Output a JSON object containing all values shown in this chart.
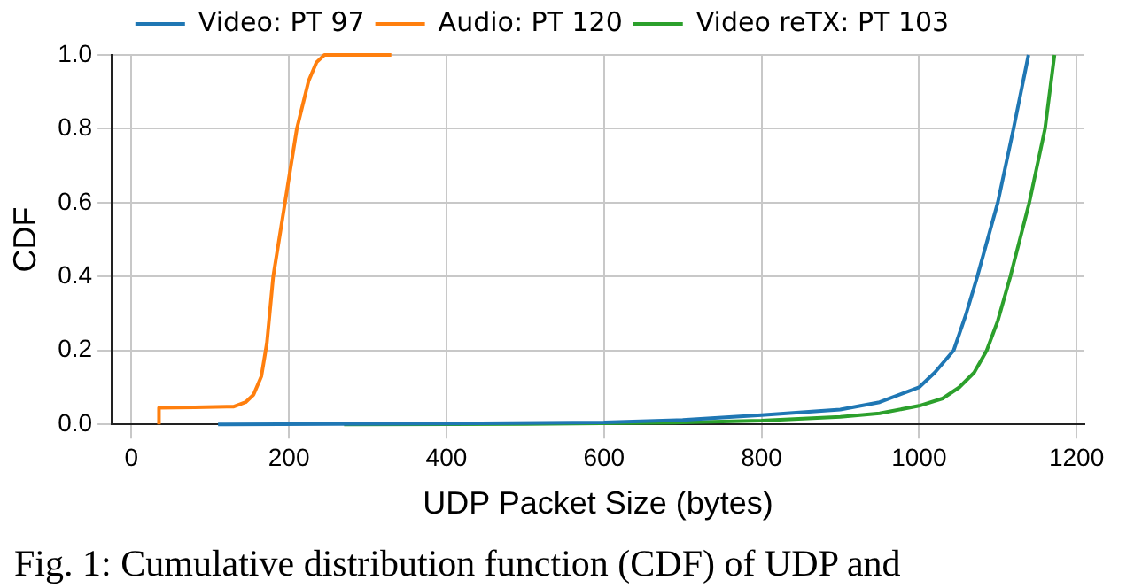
{
  "chart_data": {
    "type": "line",
    "xlabel": "UDP Packet Size (bytes)",
    "ylabel": "CDF",
    "xlim": [
      -25,
      1210
    ],
    "xticks": [
      0,
      200,
      400,
      600,
      800,
      1000,
      1200
    ],
    "ylim": [
      0,
      1
    ],
    "yticks": [
      {
        "value": 0,
        "label": "0.0"
      },
      {
        "value": 0.2,
        "label": "0.2"
      },
      {
        "value": 0.4,
        "label": "0.4"
      },
      {
        "value": 0.6,
        "label": "0.6"
      },
      {
        "value": 0.8,
        "label": "0.8"
      },
      {
        "value": 1,
        "label": "1.0"
      }
    ],
    "grid": true,
    "legend": "top",
    "marker": "none",
    "line_style": "solid",
    "series": [
      {
        "name": "Video: PT 97",
        "color": "#1f77b4",
        "x": [
          110,
          400,
          600,
          700,
          800,
          900,
          950,
          1000,
          1020,
          1044,
          1060,
          1074,
          1100,
          1120,
          1139
        ],
        "values": [
          0,
          0.002,
          0.005,
          0.012,
          0.025,
          0.04,
          0.06,
          0.1,
          0.14,
          0.2,
          0.3,
          0.4,
          0.6,
          0.8,
          1
        ]
      },
      {
        "name": "Audio: PT 120",
        "color": "#ff7f0e",
        "x": [
          35,
          35,
          80,
          130,
          145,
          155,
          165,
          172,
          180,
          195,
          210,
          225,
          235,
          245,
          255,
          330
        ],
        "values": [
          0,
          0.045,
          0.046,
          0.048,
          0.06,
          0.08,
          0.13,
          0.22,
          0.4,
          0.6,
          0.8,
          0.93,
          0.98,
          1,
          1,
          1
        ]
      },
      {
        "name": "Video reTX: PT 103",
        "color": "#2ca02c",
        "x": [
          270,
          500,
          700,
          800,
          900,
          950,
          1000,
          1030,
          1051,
          1070,
          1086,
          1100,
          1116,
          1140,
          1160,
          1172
        ],
        "values": [
          0,
          0.001,
          0.005,
          0.01,
          0.02,
          0.03,
          0.05,
          0.07,
          0.1,
          0.14,
          0.2,
          0.28,
          0.4,
          0.6,
          0.8,
          1
        ]
      }
    ],
    "annotations": [
      "Fig. 1: Cumulative distribution function (CDF) of UDP and"
    ]
  }
}
